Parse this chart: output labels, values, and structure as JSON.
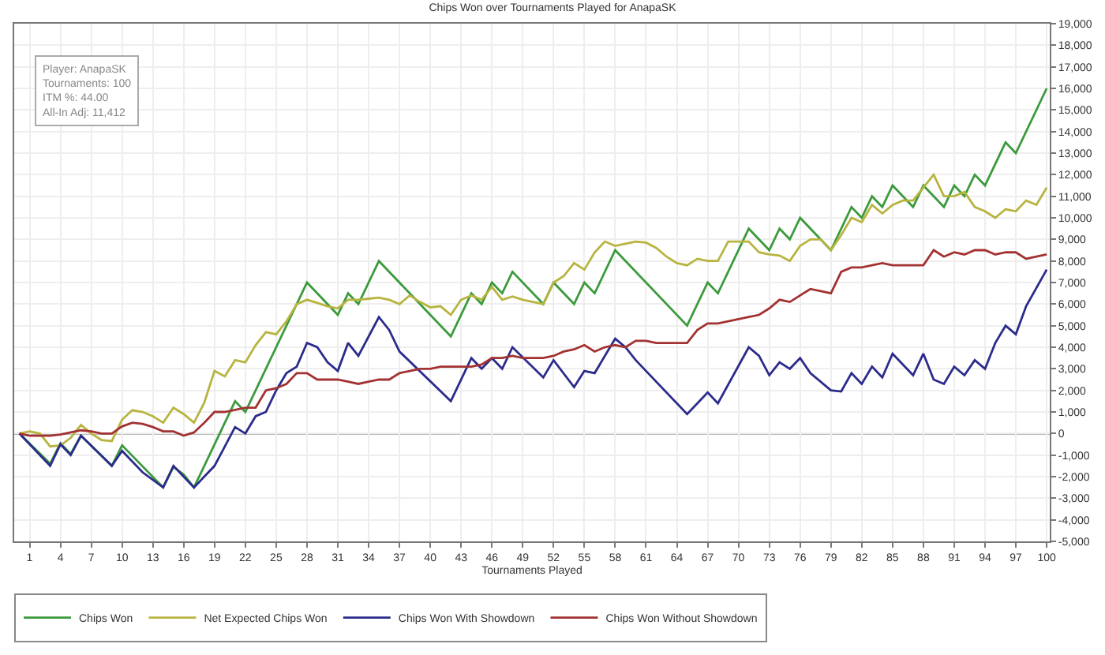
{
  "chart_data": {
    "type": "line",
    "title": "Chips Won over Tournaments Played for AnapaSK",
    "xlabel": "Tournaments Played",
    "annotations": [
      "Player: AnapaSK",
      "Tournaments: 100",
      "ITM %: 44.00",
      "All-In Adj: 11,412"
    ],
    "x": [
      0,
      1,
      2,
      3,
      4,
      5,
      6,
      7,
      8,
      9,
      10,
      11,
      12,
      13,
      14,
      15,
      16,
      17,
      18,
      19,
      20,
      21,
      22,
      23,
      24,
      25,
      26,
      27,
      28,
      29,
      30,
      31,
      32,
      33,
      34,
      35,
      36,
      37,
      38,
      39,
      40,
      41,
      42,
      43,
      44,
      45,
      46,
      47,
      48,
      49,
      50,
      51,
      52,
      53,
      54,
      55,
      56,
      57,
      58,
      59,
      60,
      61,
      62,
      63,
      64,
      65,
      66,
      67,
      68,
      69,
      70,
      71,
      72,
      73,
      74,
      75,
      76,
      77,
      78,
      79,
      80,
      81,
      82,
      83,
      84,
      85,
      86,
      87,
      88,
      89,
      90,
      91,
      92,
      93,
      94,
      95,
      96,
      97,
      98,
      99,
      100
    ],
    "series": [
      {
        "name": "Chips Won",
        "color": "#3c9a3c",
        "x": [
          0,
          3,
          4,
          5,
          6,
          9,
          10,
          14,
          15,
          16,
          17,
          21,
          22,
          28,
          31,
          32,
          33,
          35,
          42,
          44,
          45,
          46,
          47,
          48,
          51,
          52,
          54,
          55,
          56,
          58,
          65,
          67,
          68,
          71,
          73,
          74,
          75,
          76,
          79,
          81,
          82,
          83,
          84,
          85,
          87,
          88,
          90,
          91,
          92,
          93,
          94,
          96,
          97,
          100
        ],
        "values": [
          0,
          -1400,
          -450,
          -950,
          -100,
          -1500,
          -550,
          -2500,
          -1550,
          -1900,
          -2500,
          1500,
          1000,
          7000,
          5500,
          6500,
          6000,
          8000,
          4500,
          6500,
          6000,
          7000,
          6500,
          7500,
          6000,
          7000,
          6000,
          7000,
          6500,
          8500,
          5000,
          7000,
          6500,
          9500,
          8500,
          9500,
          9000,
          10000,
          8500,
          10500,
          10000,
          11000,
          10500,
          11500,
          10500,
          11500,
          10500,
          11500,
          11000,
          12000,
          11500,
          13500,
          13000,
          16000
        ]
      },
      {
        "name": "Net Expected Chips Won",
        "color": "#b8b440",
        "values": [
          0,
          100,
          0,
          -600,
          -550,
          -200,
          400,
          0,
          -300,
          -350,
          640,
          1080,
          1000,
          800,
          500,
          1200,
          900,
          500,
          1430,
          2900,
          2650,
          3400,
          3300,
          4100,
          4700,
          4600,
          5200,
          6000,
          6200,
          6050,
          5900,
          5800,
          6200,
          6200,
          6250,
          6300,
          6200,
          6000,
          6400,
          6100,
          5850,
          5900,
          5500,
          6200,
          6400,
          6200,
          6800,
          6200,
          6350,
          6200,
          6100,
          6000,
          7000,
          7300,
          7900,
          7600,
          8400,
          8900,
          8700,
          8800,
          8900,
          8850,
          8600,
          8200,
          7900,
          7800,
          8100,
          8000,
          8000,
          8900,
          8900,
          8900,
          8400,
          8300,
          8250,
          8000,
          8700,
          9000,
          9000,
          8500,
          9200,
          10000,
          9800,
          10600,
          10200,
          10600,
          10800,
          10800,
          11400,
          12000,
          11000,
          11000,
          11200,
          10500,
          10300,
          10000,
          10400,
          10300,
          10800,
          10600,
          11400
        ]
      },
      {
        "name": "Chips Won With Showdown",
        "color": "#2b2b8c",
        "x": [
          0,
          3,
          4,
          5,
          6,
          9,
          10,
          12,
          14,
          15,
          16,
          17,
          19,
          21,
          22,
          23,
          24,
          25,
          26,
          27,
          28,
          29,
          30,
          31,
          32,
          33,
          35,
          36,
          37,
          42,
          44,
          45,
          46,
          47,
          48,
          51,
          52,
          54,
          55,
          56,
          58,
          59,
          60,
          65,
          67,
          68,
          71,
          72,
          73,
          74,
          75,
          76,
          77,
          79,
          80,
          81,
          82,
          83,
          84,
          85,
          87,
          88,
          89,
          90,
          91,
          92,
          93,
          94,
          95,
          96,
          97,
          98,
          100
        ],
        "values": [
          0,
          -1500,
          -500,
          -1000,
          -100,
          -1500,
          -800,
          -1800,
          -2500,
          -1500,
          -2000,
          -2500,
          -1500,
          300,
          0,
          800,
          1000,
          2000,
          2800,
          3100,
          4200,
          4000,
          3300,
          2900,
          4200,
          3600,
          5400,
          4800,
          3800,
          1500,
          3500,
          3000,
          3500,
          3000,
          4000,
          2600,
          3400,
          2150,
          2900,
          2800,
          4400,
          4000,
          3400,
          900,
          1900,
          1400,
          4000,
          3600,
          2700,
          3300,
          3000,
          3500,
          2800,
          2000,
          1950,
          2800,
          2300,
          3100,
          2600,
          3700,
          2700,
          3700,
          2500,
          2300,
          3100,
          2700,
          3400,
          3000,
          4200,
          5000,
          4600,
          5900,
          7600
        ]
      },
      {
        "name": "Chips Won Without Showdown",
        "color": "#a33232",
        "values": [
          0,
          -100,
          -100,
          -100,
          -50,
          50,
          150,
          100,
          0,
          0,
          330,
          500,
          450,
          300,
          100,
          100,
          -100,
          50,
          500,
          1000,
          1000,
          1100,
          1200,
          1200,
          2000,
          2100,
          2300,
          2800,
          2800,
          2500,
          2500,
          2500,
          2400,
          2300,
          2400,
          2500,
          2500,
          2800,
          2900,
          3000,
          3000,
          3100,
          3100,
          3100,
          3100,
          3200,
          3500,
          3500,
          3600,
          3500,
          3500,
          3500,
          3600,
          3800,
          3900,
          4100,
          3800,
          4000,
          4100,
          4000,
          4300,
          4300,
          4200,
          4200,
          4200,
          4200,
          4800,
          5100,
          5100,
          5200,
          5300,
          5400,
          5500,
          5800,
          6200,
          6100,
          6400,
          6700,
          6600,
          6500,
          7500,
          7700,
          7700,
          7800,
          7900,
          7800,
          7800,
          7800,
          7800,
          8500,
          8200,
          8400,
          8300,
          8500,
          8500,
          8300,
          8400,
          8400,
          8100,
          8200,
          8300
        ]
      }
    ],
    "xlim": [
      -0.5,
      100.3
    ],
    "xticks": [
      1,
      4,
      7,
      10,
      13,
      16,
      19,
      22,
      25,
      28,
      31,
      34,
      37,
      40,
      43,
      46,
      49,
      52,
      55,
      58,
      61,
      64,
      67,
      70,
      73,
      76,
      79,
      82,
      85,
      88,
      91,
      94,
      97,
      100
    ],
    "ylim": [
      -5000,
      19000
    ],
    "yticks": [
      {
        "value": -5000,
        "label": "-5,000"
      },
      {
        "value": -4000,
        "label": "-4,000"
      },
      {
        "value": -3000,
        "label": "-3,000"
      },
      {
        "value": -2000,
        "label": "-2,000"
      },
      {
        "value": -1000,
        "label": "-1,000"
      },
      0,
      {
        "value": 1000,
        "label": "1,000"
      },
      {
        "value": 2000,
        "label": "2,000"
      },
      {
        "value": 3000,
        "label": "3,000"
      },
      {
        "value": 4000,
        "label": "4,000"
      },
      {
        "value": 5000,
        "label": "5,000"
      },
      {
        "value": 6000,
        "label": "6,000"
      },
      {
        "value": 7000,
        "label": "7,000"
      },
      {
        "value": 8000,
        "label": "8,000"
      },
      {
        "value": 9000,
        "label": "9,000"
      },
      {
        "value": 10000,
        "label": "10,000"
      },
      {
        "value": 11000,
        "label": "11,000"
      },
      {
        "value": 12000,
        "label": "12,000"
      },
      {
        "value": 13000,
        "label": "13,000"
      },
      {
        "value": 14000,
        "label": "14,000"
      },
      {
        "value": 15000,
        "label": "15,000"
      },
      {
        "value": 16000,
        "label": "16,000"
      },
      {
        "value": 17000,
        "label": "17,000"
      },
      {
        "value": 18000,
        "label": "18,000"
      },
      {
        "value": 19000,
        "label": "19,000"
      }
    ],
    "ref_lines": [
      {
        "axis": "y",
        "value": 0,
        "color": "#707070"
      }
    ],
    "grid": true,
    "legend": "bottom",
    "marker": "none",
    "line_style": "solid"
  }
}
